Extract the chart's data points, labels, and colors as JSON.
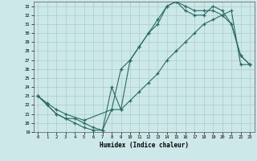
{
  "xlabel": "Humidex (Indice chaleur)",
  "xlim": [
    -0.5,
    23.5
  ],
  "ylim": [
    19,
    33.5
  ],
  "xticks": [
    0,
    1,
    2,
    3,
    4,
    5,
    6,
    7,
    8,
    9,
    10,
    11,
    12,
    13,
    14,
    15,
    16,
    17,
    18,
    19,
    20,
    21,
    22,
    23
  ],
  "yticks": [
    19,
    20,
    21,
    22,
    23,
    24,
    25,
    26,
    27,
    28,
    29,
    30,
    31,
    32,
    33
  ],
  "bg_color": "#cde8e8",
  "line_color": "#2a6b65",
  "grid_color": "#aacccc",
  "line1_x": [
    0,
    1,
    2,
    3,
    4,
    5,
    6,
    7,
    8,
    9,
    10,
    11,
    12,
    13,
    14,
    15,
    16,
    17,
    18,
    19,
    20,
    21,
    22,
    23
  ],
  "line1_y": [
    23,
    22,
    21,
    20.5,
    20,
    19.5,
    19.2,
    19.2,
    21.5,
    26,
    27,
    28.5,
    30,
    31,
    33,
    33.5,
    33,
    32.5,
    32.5,
    32.5,
    32,
    31,
    27.5,
    26.5
  ],
  "line2_x": [
    0,
    1,
    2,
    3,
    4,
    5,
    6,
    7,
    8,
    9,
    10,
    11,
    12,
    13,
    14,
    15,
    16,
    17,
    18,
    19,
    20,
    21,
    22,
    23
  ],
  "line2_y": [
    23,
    22,
    21,
    20.5,
    20.5,
    20,
    19.5,
    19.2,
    24,
    21.5,
    27,
    28.5,
    30,
    31.5,
    33,
    33.5,
    32.5,
    32,
    32,
    33,
    32.5,
    31,
    27.5,
    26.5
  ],
  "line3_x": [
    0,
    1,
    2,
    3,
    5,
    8,
    9,
    10,
    11,
    12,
    13,
    14,
    15,
    16,
    17,
    18,
    19,
    20,
    21,
    22,
    23
  ],
  "line3_y": [
    23,
    22.2,
    21.5,
    21,
    20.3,
    21.5,
    21.5,
    22.5,
    23.5,
    24.5,
    25.5,
    27,
    28,
    29,
    30,
    31,
    31.5,
    32,
    32.5,
    26.5,
    26.5
  ]
}
